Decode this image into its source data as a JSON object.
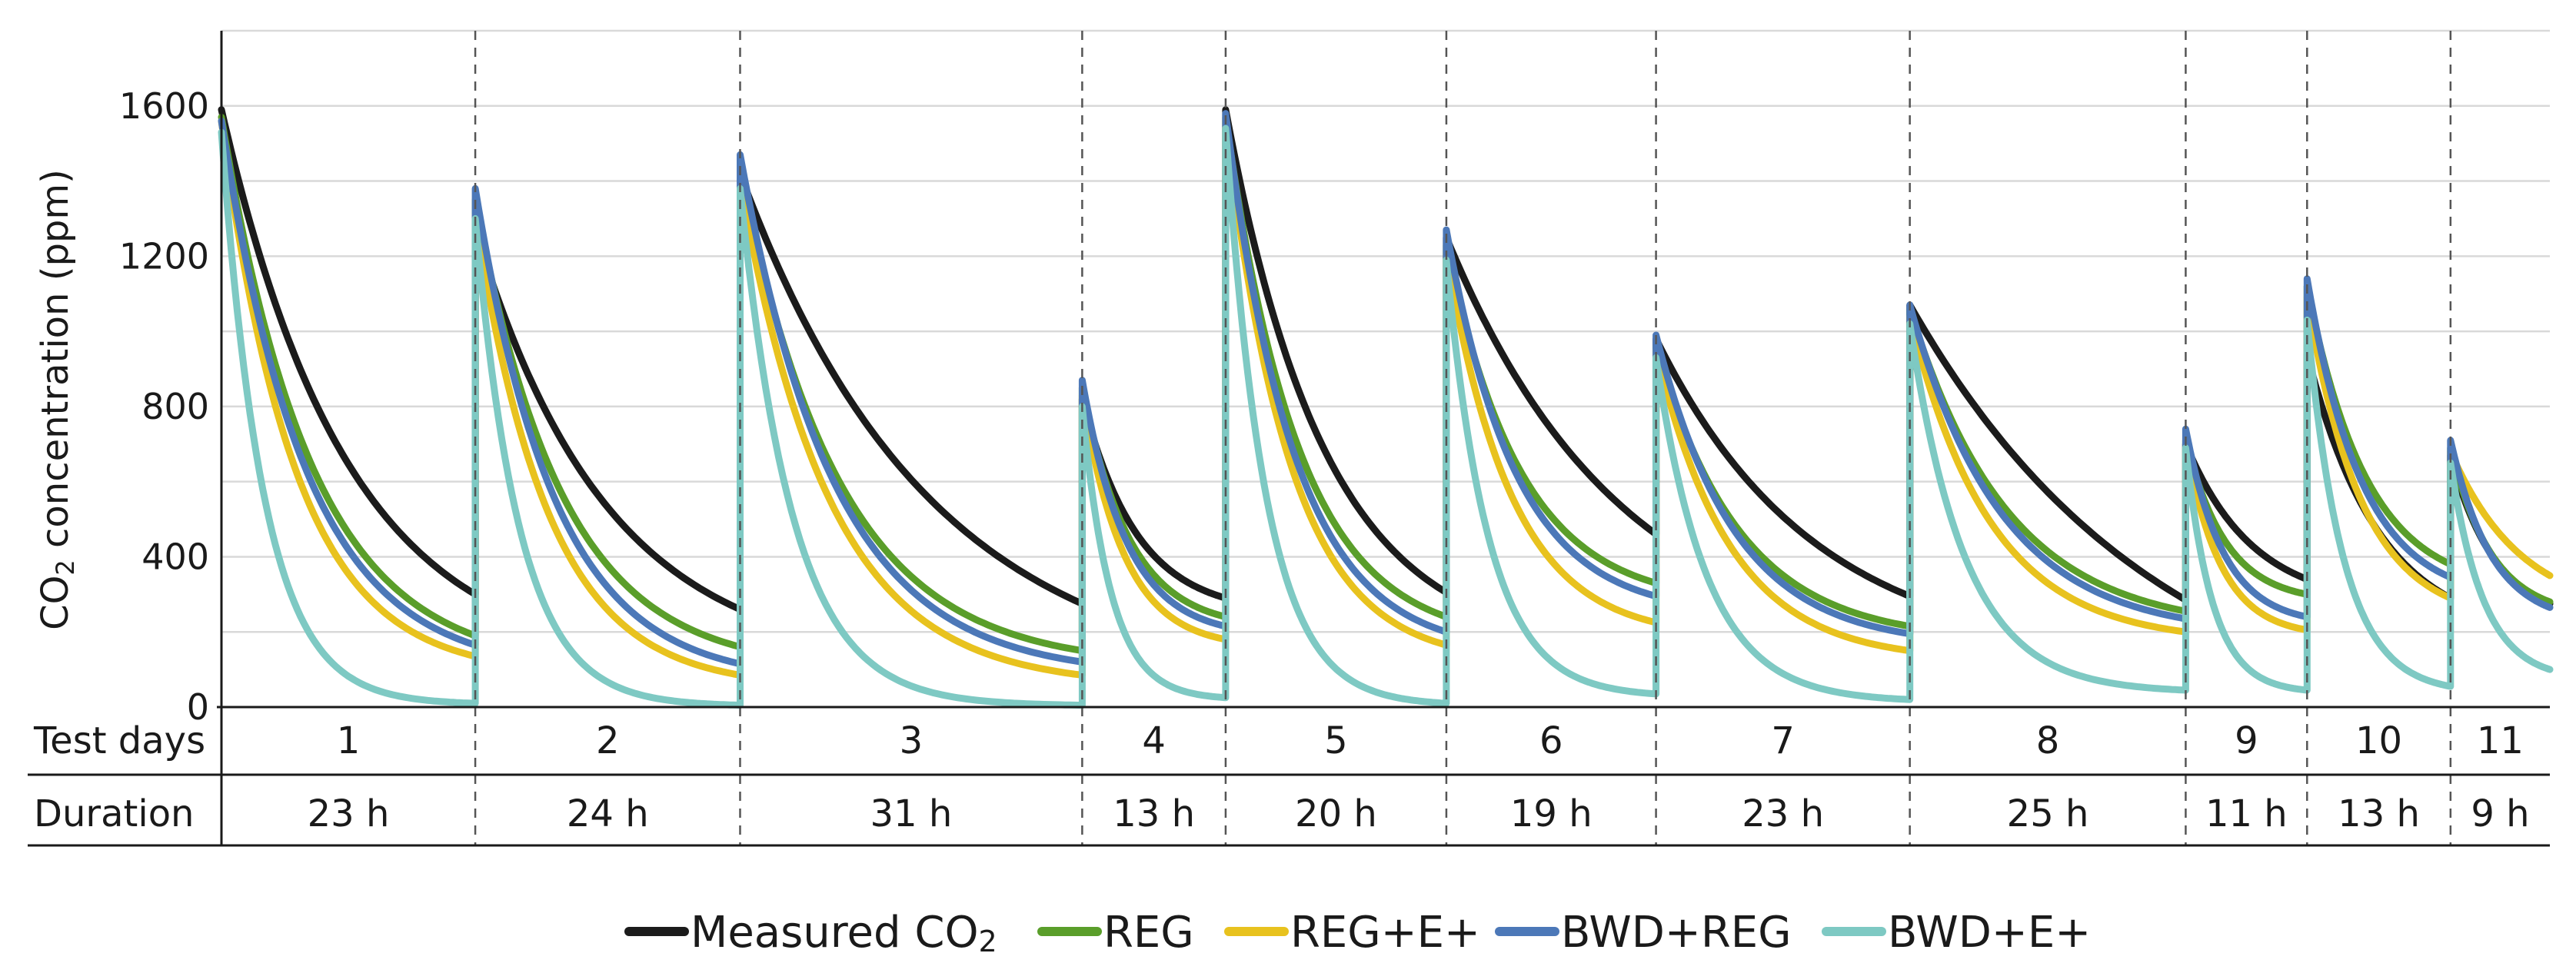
{
  "chart_data": {
    "type": "line",
    "title": "",
    "ylabel": "CO2 concentration (ppm)",
    "ylabel_main": "CO",
    "ylabel_sub": "2",
    "ylabel_rest": "  concentration (ppm)",
    "ylim": [
      0,
      1800
    ],
    "yticks": [
      0,
      400,
      800,
      1200,
      1600
    ],
    "ytick_labels": [
      "0",
      "400",
      "800",
      "1200",
      "1600"
    ],
    "xlabel": "",
    "grid": true,
    "legend_position": "bottom-center",
    "table": {
      "row1_label": "Test days",
      "row2_label": "Duration",
      "segments": [
        {
          "day": "1",
          "duration": "23 h"
        },
        {
          "day": "2",
          "duration": "24 h"
        },
        {
          "day": "3",
          "duration": "31 h"
        },
        {
          "day": "4",
          "duration": "13 h"
        },
        {
          "day": "5",
          "duration": "20 h"
        },
        {
          "day": "6",
          "duration": "19 h"
        },
        {
          "day": "7",
          "duration": "23 h"
        },
        {
          "day": "8",
          "duration": "25 h"
        },
        {
          "day": "9",
          "duration": "11 h"
        },
        {
          "day": "10",
          "duration": "13 h"
        },
        {
          "day": "11",
          "duration": "9 h"
        }
      ]
    },
    "series": [
      {
        "name": "Measured CO2",
        "legend_main": "Measured CO",
        "legend_sub": "2",
        "color": "#1b1b1b",
        "start": [
          1590,
          1270,
          1420,
          820,
          1590,
          1250,
          980,
          1070,
          700,
          940,
          670
        ],
        "end": [
          300,
          260,
          275,
          290,
          305,
          460,
          295,
          285,
          340,
          290,
          275
        ],
        "curve": [
          2.0,
          2.0,
          1.8,
          2.6,
          2.2,
          1.2,
          1.6,
          1.1,
          1.8,
          2.0,
          2.2
        ]
      },
      {
        "name": "REG",
        "legend_main": "REG",
        "legend_sub": "",
        "color": "#5a9e2a",
        "start": [
          1570,
          1350,
          1430,
          850,
          1570,
          1230,
          960,
          1060,
          710,
          1120,
          690
        ],
        "end": [
          190,
          160,
          150,
          240,
          240,
          330,
          215,
          255,
          300,
          380,
          280
        ],
        "curve": [
          2.8,
          3.0,
          3.4,
          3.0,
          3.0,
          2.8,
          3.0,
          2.8,
          3.0,
          2.4,
          2.4
        ]
      },
      {
        "name": "REG+E+",
        "legend_main": "REG+E+",
        "legend_sub": "",
        "color": "#e8c21e",
        "start": [
          1560,
          1310,
          1400,
          830,
          1560,
          1210,
          950,
          1040,
          700,
          1090,
          680
        ],
        "end": [
          135,
          85,
          85,
          180,
          165,
          225,
          150,
          200,
          205,
          290,
          350
        ],
        "curve": [
          3.4,
          3.6,
          3.8,
          3.4,
          3.4,
          3.2,
          3.4,
          3.4,
          3.4,
          2.6,
          1.4
        ]
      },
      {
        "name": "BWD+REG",
        "legend_main": "BWD+REG",
        "legend_sub": "",
        "color": "#4c78b8",
        "start": [
          1560,
          1380,
          1470,
          870,
          1580,
          1270,
          990,
          1070,
          740,
          1140,
          710
        ],
        "end": [
          165,
          115,
          120,
          215,
          200,
          295,
          195,
          235,
          240,
          345,
          265
        ],
        "curve": [
          3.0,
          3.3,
          3.6,
          3.2,
          3.2,
          3.0,
          3.2,
          3.0,
          3.2,
          2.6,
          2.4
        ]
      },
      {
        "name": "BWD+E+",
        "legend_main": "BWD+E+",
        "legend_sub": "",
        "color": "#7ec9c3",
        "start": [
          1530,
          1300,
          1380,
          800,
          1540,
          1190,
          930,
          1020,
          690,
          1030,
          650
        ],
        "end": [
          10,
          5,
          5,
          25,
          10,
          35,
          20,
          45,
          45,
          55,
          100
        ],
        "curve": [
          6.0,
          6.0,
          6.5,
          5.0,
          5.5,
          5.0,
          5.0,
          5.0,
          4.5,
          4.0,
          3.0
        ]
      }
    ]
  }
}
